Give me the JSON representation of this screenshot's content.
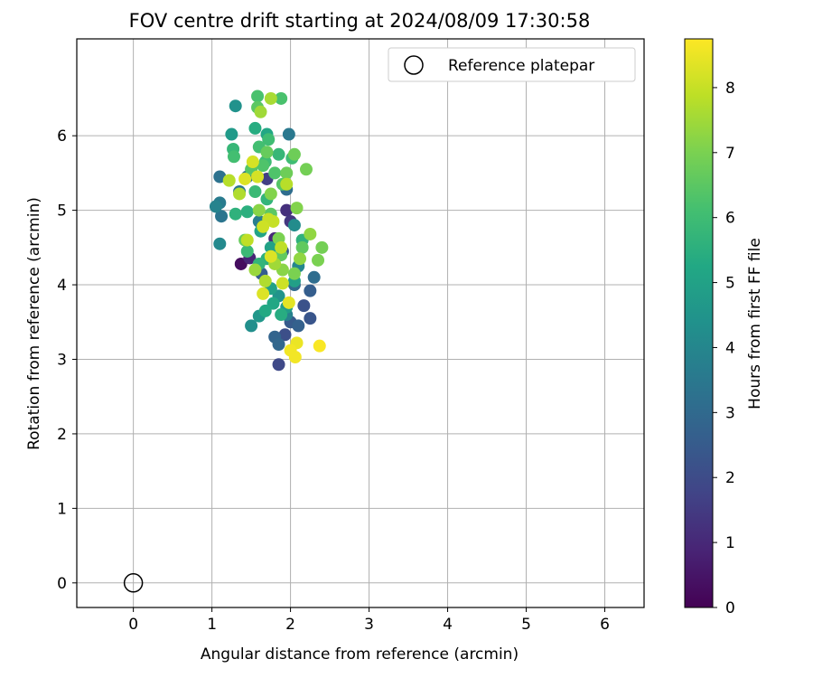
{
  "chart_data": {
    "type": "scatter",
    "title": "FOV centre drift starting at 2024/08/09 17:30:58",
    "xlabel": "Angular distance from reference (arcmin)",
    "ylabel": "Rotation from reference (arcmin)",
    "xlim": [
      -0.72,
      6.5
    ],
    "ylim": [
      -0.33,
      7.3
    ],
    "xticks": [
      0,
      1,
      2,
      3,
      4,
      5,
      6
    ],
    "yticks": [
      0,
      1,
      2,
      3,
      4,
      5,
      6
    ],
    "grid": true,
    "legend": {
      "placement": "top-right",
      "entries": [
        "Reference platepar"
      ]
    },
    "reference_point": {
      "x": 0,
      "y": 0,
      "name": "Reference platepar"
    },
    "colorbar": {
      "label": "Hours from first FF file",
      "range": [
        0,
        8.75
      ],
      "ticks": [
        0,
        1,
        2,
        3,
        4,
        5,
        6,
        7,
        8
      ],
      "colormap": "viridis"
    },
    "points": [
      {
        "x": 1.37,
        "y": 4.28,
        "c": 0.3
      },
      {
        "x": 1.48,
        "y": 4.36,
        "c": 0.9
      },
      {
        "x": 1.8,
        "y": 4.62,
        "c": 1.0
      },
      {
        "x": 1.95,
        "y": 5.0,
        "c": 1.2
      },
      {
        "x": 2.0,
        "y": 4.85,
        "c": 1.4
      },
      {
        "x": 1.7,
        "y": 5.42,
        "c": 1.6
      },
      {
        "x": 1.85,
        "y": 2.93,
        "c": 1.9
      },
      {
        "x": 1.93,
        "y": 3.33,
        "c": 2.1
      },
      {
        "x": 2.17,
        "y": 3.72,
        "c": 2.2
      },
      {
        "x": 2.25,
        "y": 3.55,
        "c": 2.3
      },
      {
        "x": 1.9,
        "y": 4.45,
        "c": 2.4
      },
      {
        "x": 2.0,
        "y": 3.5,
        "c": 2.5
      },
      {
        "x": 2.25,
        "y": 3.92,
        "c": 2.6
      },
      {
        "x": 1.63,
        "y": 4.15,
        "c": 2.6
      },
      {
        "x": 2.1,
        "y": 3.45,
        "c": 2.7
      },
      {
        "x": 1.8,
        "y": 3.3,
        "c": 2.8
      },
      {
        "x": 1.85,
        "y": 3.2,
        "c": 2.9
      },
      {
        "x": 2.05,
        "y": 4.0,
        "c": 3.0
      },
      {
        "x": 2.3,
        "y": 4.1,
        "c": 3.1
      },
      {
        "x": 1.95,
        "y": 5.28,
        "c": 3.1
      },
      {
        "x": 1.45,
        "y": 5.45,
        "c": 3.2
      },
      {
        "x": 1.1,
        "y": 5.45,
        "c": 3.3
      },
      {
        "x": 1.12,
        "y": 4.92,
        "c": 3.4
      },
      {
        "x": 1.35,
        "y": 5.25,
        "c": 3.4
      },
      {
        "x": 1.98,
        "y": 6.02,
        "c": 3.5
      },
      {
        "x": 1.1,
        "y": 5.1,
        "c": 3.6
      },
      {
        "x": 1.6,
        "y": 4.85,
        "c": 3.7
      },
      {
        "x": 1.95,
        "y": 3.6,
        "c": 3.8
      },
      {
        "x": 1.05,
        "y": 5.05,
        "c": 3.9
      },
      {
        "x": 2.1,
        "y": 4.25,
        "c": 4.0
      },
      {
        "x": 1.1,
        "y": 4.55,
        "c": 4.1
      },
      {
        "x": 2.05,
        "y": 4.8,
        "c": 4.2
      },
      {
        "x": 1.5,
        "y": 3.45,
        "c": 4.3
      },
      {
        "x": 1.3,
        "y": 6.4,
        "c": 4.4
      },
      {
        "x": 1.85,
        "y": 3.85,
        "c": 4.5
      },
      {
        "x": 1.6,
        "y": 3.58,
        "c": 4.6
      },
      {
        "x": 1.25,
        "y": 6.02,
        "c": 4.7
      },
      {
        "x": 1.95,
        "y": 3.7,
        "c": 4.8
      },
      {
        "x": 2.05,
        "y": 4.05,
        "c": 4.9
      },
      {
        "x": 1.75,
        "y": 4.5,
        "c": 5.0
      },
      {
        "x": 1.75,
        "y": 3.95,
        "c": 5.0
      },
      {
        "x": 1.62,
        "y": 4.72,
        "c": 5.1
      },
      {
        "x": 1.78,
        "y": 3.75,
        "c": 5.2
      },
      {
        "x": 1.7,
        "y": 6.02,
        "c": 5.2
      },
      {
        "x": 1.68,
        "y": 3.65,
        "c": 5.3
      },
      {
        "x": 1.55,
        "y": 6.1,
        "c": 5.4
      },
      {
        "x": 1.88,
        "y": 3.6,
        "c": 5.4
      },
      {
        "x": 1.7,
        "y": 4.35,
        "c": 5.5
      },
      {
        "x": 1.45,
        "y": 4.98,
        "c": 5.5
      },
      {
        "x": 1.3,
        "y": 4.95,
        "c": 5.6
      },
      {
        "x": 2.15,
        "y": 4.6,
        "c": 5.6
      },
      {
        "x": 1.6,
        "y": 4.28,
        "c": 5.7
      },
      {
        "x": 1.7,
        "y": 5.15,
        "c": 5.7
      },
      {
        "x": 1.85,
        "y": 5.75,
        "c": 5.8
      },
      {
        "x": 1.27,
        "y": 5.82,
        "c": 5.8
      },
      {
        "x": 1.55,
        "y": 5.25,
        "c": 5.9
      },
      {
        "x": 1.45,
        "y": 4.45,
        "c": 5.9
      },
      {
        "x": 1.68,
        "y": 5.65,
        "c": 6.0
      },
      {
        "x": 2.02,
        "y": 5.7,
        "c": 6.0
      },
      {
        "x": 1.72,
        "y": 5.95,
        "c": 6.0
      },
      {
        "x": 1.28,
        "y": 5.72,
        "c": 6.1
      },
      {
        "x": 1.6,
        "y": 5.85,
        "c": 6.1
      },
      {
        "x": 1.58,
        "y": 6.53,
        "c": 6.2
      },
      {
        "x": 1.88,
        "y": 6.5,
        "c": 6.2
      },
      {
        "x": 1.8,
        "y": 5.5,
        "c": 6.3
      },
      {
        "x": 1.65,
        "y": 5.6,
        "c": 6.3
      },
      {
        "x": 1.5,
        "y": 5.55,
        "c": 6.4
      },
      {
        "x": 1.9,
        "y": 5.35,
        "c": 6.4
      },
      {
        "x": 1.58,
        "y": 6.38,
        "c": 6.5
      },
      {
        "x": 1.75,
        "y": 4.95,
        "c": 6.5
      },
      {
        "x": 2.15,
        "y": 4.5,
        "c": 6.6
      },
      {
        "x": 1.88,
        "y": 4.4,
        "c": 6.6
      },
      {
        "x": 1.42,
        "y": 4.6,
        "c": 6.7
      },
      {
        "x": 1.7,
        "y": 5.78,
        "c": 6.7
      },
      {
        "x": 1.95,
        "y": 5.5,
        "c": 6.8
      },
      {
        "x": 2.05,
        "y": 5.75,
        "c": 6.8
      },
      {
        "x": 2.2,
        "y": 5.55,
        "c": 6.9
      },
      {
        "x": 2.4,
        "y": 4.5,
        "c": 6.9
      },
      {
        "x": 2.05,
        "y": 4.15,
        "c": 7.0
      },
      {
        "x": 2.35,
        "y": 4.33,
        "c": 7.0
      },
      {
        "x": 1.85,
        "y": 4.62,
        "c": 7.0
      },
      {
        "x": 2.08,
        "y": 5.03,
        "c": 7.1
      },
      {
        "x": 1.75,
        "y": 5.22,
        "c": 7.1
      },
      {
        "x": 1.6,
        "y": 5.0,
        "c": 7.2
      },
      {
        "x": 1.9,
        "y": 4.2,
        "c": 7.2
      },
      {
        "x": 2.12,
        "y": 4.35,
        "c": 7.3
      },
      {
        "x": 2.25,
        "y": 4.68,
        "c": 7.3
      },
      {
        "x": 1.55,
        "y": 4.2,
        "c": 7.4
      },
      {
        "x": 1.8,
        "y": 4.28,
        "c": 7.5
      },
      {
        "x": 1.62,
        "y": 6.32,
        "c": 7.5
      },
      {
        "x": 1.75,
        "y": 6.5,
        "c": 7.6
      },
      {
        "x": 1.68,
        "y": 4.05,
        "c": 7.7
      },
      {
        "x": 1.35,
        "y": 5.22,
        "c": 7.7
      },
      {
        "x": 1.22,
        "y": 5.4,
        "c": 7.8
      },
      {
        "x": 1.95,
        "y": 5.35,
        "c": 7.8
      },
      {
        "x": 1.45,
        "y": 4.6,
        "c": 7.9
      },
      {
        "x": 1.88,
        "y": 4.5,
        "c": 7.9
      },
      {
        "x": 1.78,
        "y": 4.85,
        "c": 8.0
      },
      {
        "x": 1.72,
        "y": 4.88,
        "c": 8.0
      },
      {
        "x": 1.65,
        "y": 4.78,
        "c": 8.1
      },
      {
        "x": 1.9,
        "y": 4.02,
        "c": 8.1
      },
      {
        "x": 1.58,
        "y": 5.45,
        "c": 8.2
      },
      {
        "x": 1.52,
        "y": 5.65,
        "c": 8.2
      },
      {
        "x": 1.75,
        "y": 4.38,
        "c": 8.3
      },
      {
        "x": 1.65,
        "y": 3.88,
        "c": 8.3
      },
      {
        "x": 1.42,
        "y": 5.42,
        "c": 8.3
      },
      {
        "x": 1.98,
        "y": 3.76,
        "c": 8.4
      },
      {
        "x": 2.08,
        "y": 3.22,
        "c": 8.5
      },
      {
        "x": 2.0,
        "y": 3.12,
        "c": 8.6
      },
      {
        "x": 2.06,
        "y": 3.03,
        "c": 8.6
      },
      {
        "x": 2.37,
        "y": 3.18,
        "c": 8.7
      }
    ]
  }
}
